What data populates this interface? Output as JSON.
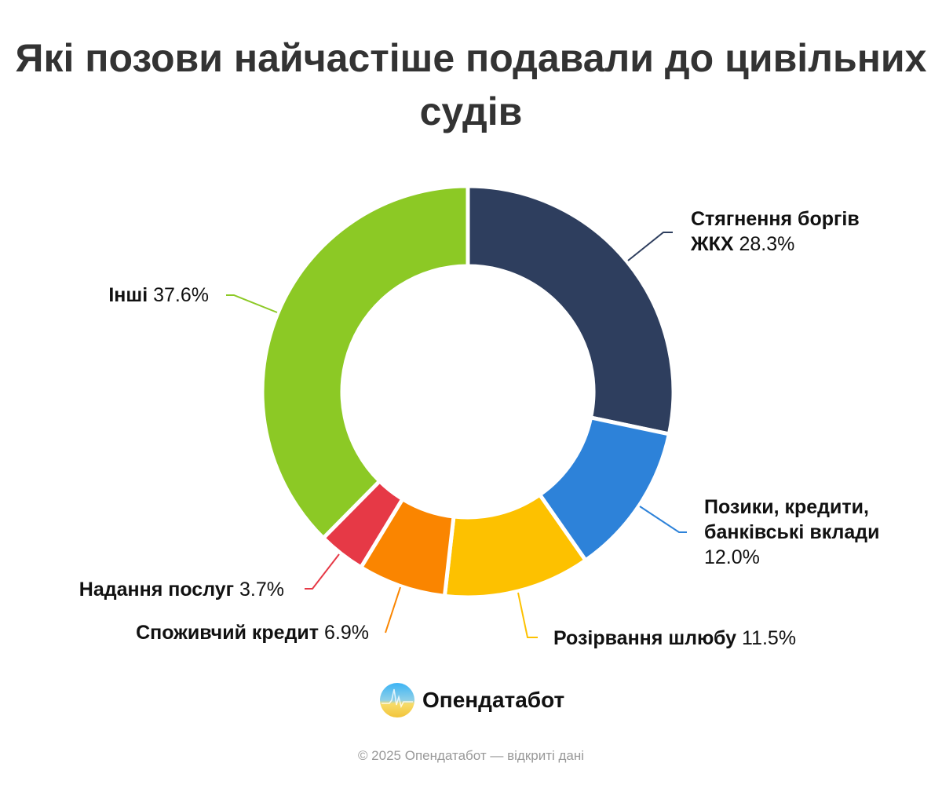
{
  "chart_data": {
    "type": "pie",
    "donut": true,
    "title": "Які позови найчастіше подавали до цивільних судів",
    "slices": [
      {
        "label": "Стягнення боргів ЖКХ",
        "value": 28.3,
        "display": "28.3%",
        "color": "#2e3e5e"
      },
      {
        "label": "Позики, кредити, банківські вклади",
        "value": 12.0,
        "display": "12.0%",
        "color": "#2d82d9"
      },
      {
        "label": "Розірвання шлюбу",
        "value": 11.5,
        "display": "11.5%",
        "color": "#fdc100"
      },
      {
        "label": "Споживчий кредит",
        "value": 6.9,
        "display": "6.9%",
        "color": "#fa8500"
      },
      {
        "label": "Надання послуг",
        "value": 3.7,
        "display": "3.7%",
        "color": "#e63946"
      },
      {
        "label": "Інші",
        "value": 37.6,
        "display": "37.6%",
        "color": "#8cc925"
      }
    ]
  },
  "brand": {
    "name": "Опендатабот",
    "logo_icon": "opendatabot-logo-icon"
  },
  "footer": "© 2025 Опендатабот — відкриті дані"
}
